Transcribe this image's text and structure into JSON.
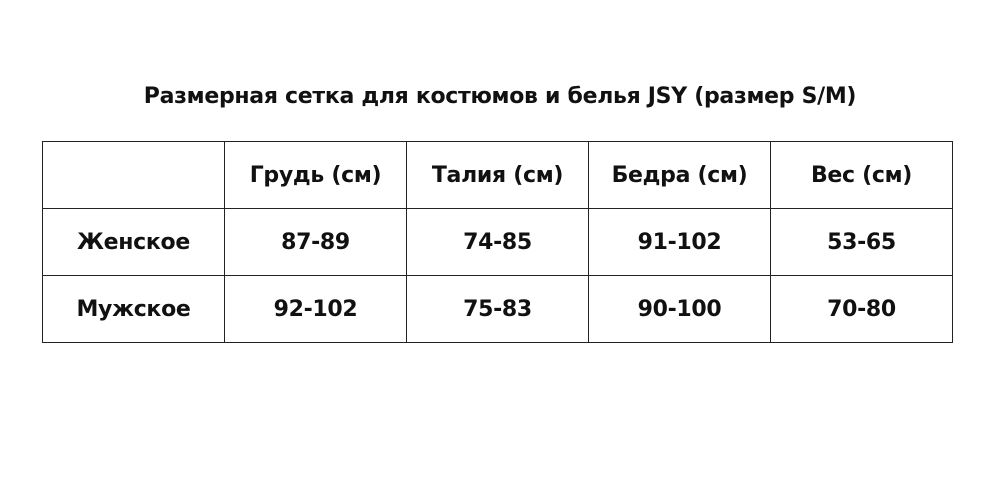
{
  "title": "Размерная сетка для костюмов и белья JSY (размер S/M)",
  "table": {
    "headers": [
      "",
      "Грудь (см)",
      "Талия (см)",
      "Бедра (см)",
      "Вес (см)"
    ],
    "rows": [
      [
        "Женское",
        "87-89",
        "74-85",
        "91-102",
        "53-65"
      ],
      [
        "Мужское",
        "92-102",
        "75-83",
        "90-100",
        "70-80"
      ]
    ]
  }
}
